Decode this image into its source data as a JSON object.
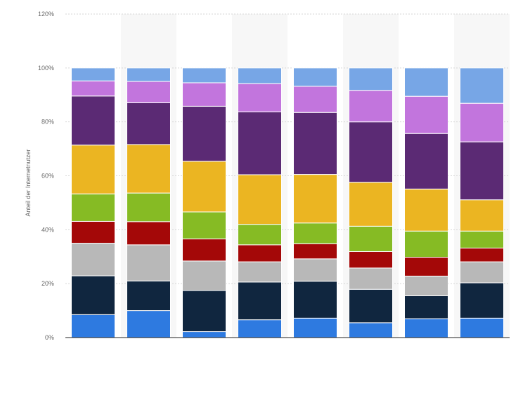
{
  "chart_data": {
    "type": "bar",
    "stacked": true,
    "title": "",
    "xlabel": "",
    "ylabel": "Anteil der Internetnutzer",
    "ylim": [
      0,
      120
    ],
    "yticks": [
      0,
      20,
      40,
      60,
      80,
      100,
      120
    ],
    "ytick_labels": [
      "0%",
      "20%",
      "40%",
      "60%",
      "80%",
      "100%",
      "120%"
    ],
    "grid": true,
    "legend": "none",
    "categories": [
      "",
      "",
      "",
      "",
      "",
      "",
      "",
      ""
    ],
    "series": [
      {
        "color": "#2e7ae0",
        "values": [
          8.5,
          10,
          2.2,
          6.6,
          7.2,
          5.5,
          7,
          7.2
        ]
      },
      {
        "color": "#10263f",
        "values": [
          14.4,
          11,
          15.3,
          14,
          13.7,
          12.4,
          8.5,
          13.1
        ]
      },
      {
        "color": "#b8b8b8",
        "values": [
          12.1,
          13.4,
          10.9,
          7.5,
          8.3,
          7.9,
          7.3,
          7.8
        ]
      },
      {
        "color": "#a40808",
        "values": [
          8.1,
          8.6,
          8.2,
          6.3,
          5.6,
          6.1,
          7,
          5.1
        ]
      },
      {
        "color": "#86bb24",
        "values": [
          10.2,
          10.6,
          10,
          7.6,
          7.7,
          9.4,
          9.7,
          6.3
        ]
      },
      {
        "color": "#ebb522",
        "values": [
          18.1,
          18,
          18.8,
          18.4,
          18,
          16.3,
          15.6,
          11.6
        ]
      },
      {
        "color": "#5b2a74",
        "values": [
          18.2,
          15.5,
          20.4,
          23.3,
          23,
          22.4,
          20.6,
          21.5
        ]
      },
      {
        "color": "#c275dd",
        "values": [
          5.6,
          7.9,
          8.7,
          10.5,
          9.7,
          11.7,
          13.8,
          14.3
        ]
      },
      {
        "color": "#77a6e6",
        "values": [
          4.8,
          5,
          5.5,
          5.8,
          6.8,
          8.3,
          10.5,
          13.1
        ]
      }
    ]
  }
}
